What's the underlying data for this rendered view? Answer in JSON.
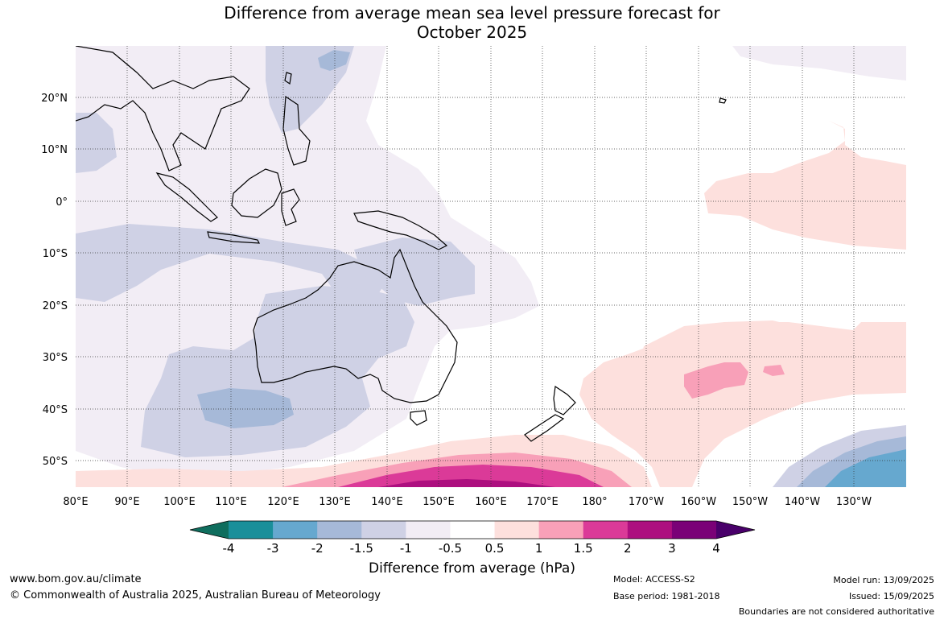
{
  "title": {
    "line1": "Difference from average mean sea level pressure forecast for",
    "line2": "October 2025"
  },
  "map": {
    "lon_labels": [
      "80°E",
      "90°E",
      "100°E",
      "110°E",
      "120°E",
      "130°E",
      "140°E",
      "150°E",
      "160°E",
      "170°E",
      "180°",
      "170°W",
      "160°W",
      "150°W",
      "140°W",
      "130°W"
    ],
    "lat_labels": [
      "20°N",
      "10°N",
      "0°",
      "10°S",
      "20°S",
      "30°S",
      "40°S",
      "50°S"
    ],
    "projection": "equirectangular",
    "extent": {
      "lon_min": 80,
      "lon_max": 240,
      "lat_min": -55,
      "lat_max": 30
    },
    "gridlines": "dotted",
    "land_outline_color": "#000000"
  },
  "colorbar": {
    "ticks": [
      "-4",
      "-3",
      "-2",
      "-1.5",
      "-1",
      "-0.5",
      "0.5",
      "1",
      "1.5",
      "2",
      "3",
      "4"
    ],
    "colors": [
      "#0f6e5e",
      "#1a8f9a",
      "#66a8cf",
      "#a6b9d8",
      "#cfd1e5",
      "#f2edf5",
      "#ffffff",
      "#fde0dd",
      "#f8a0b8",
      "#db3a98",
      "#ad0f7f",
      "#7a0177",
      "#49006a"
    ],
    "title": "Difference from average (hPa)"
  },
  "footer": {
    "website": "www.bom.gov.au/climate",
    "copyright": "© Commonwealth of Australia 2025, Australian Bureau of Meteorology",
    "model": "Model: ACCESS-S2",
    "base_period": "Base period: 1981-2018",
    "model_run": "Model run: 13/09/2025",
    "issued": "Issued: 15/09/2025",
    "disclaimer": "Boundaries are not considered authoritative"
  }
}
